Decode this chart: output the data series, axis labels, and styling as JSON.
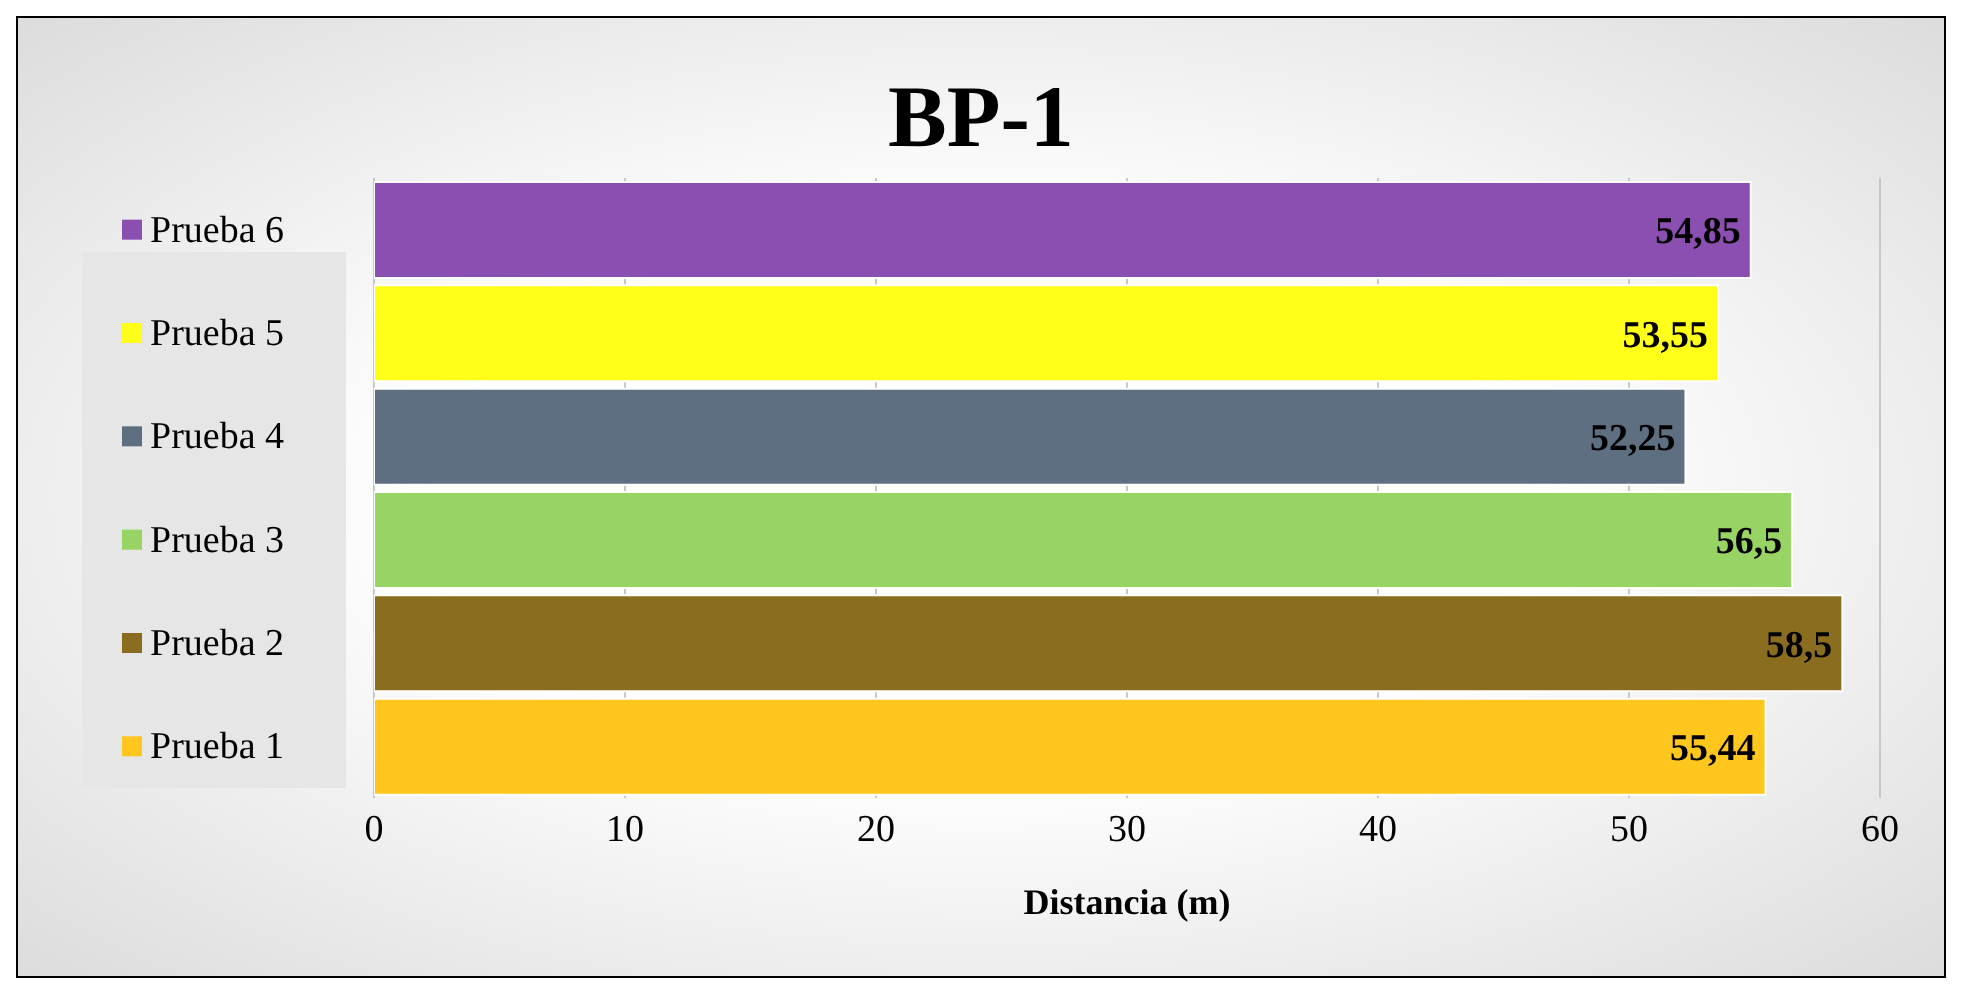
{
  "chart_data": {
    "type": "bar",
    "orientation": "horizontal",
    "title": "BP-1",
    "xlabel": "Distancia (m)",
    "categories": [
      "Prueba 6",
      "Prueba 5",
      "Prueba 4",
      "Prueba 3",
      "Prueba 2",
      "Prueba 1"
    ],
    "values": [
      54.85,
      53.55,
      52.25,
      56.5,
      58.5,
      55.44
    ],
    "colors": [
      "#8a4fb0",
      "#ffff1a",
      "#5f6f82",
      "#98d464",
      "#8b6d1f",
      "#ffc61e"
    ],
    "value_labels": [
      "54,85",
      "53,55",
      "52,25",
      "56,5",
      "58,5",
      "55,44"
    ],
    "xlim": [
      0,
      60
    ],
    "xticks": [
      0,
      10,
      20,
      30,
      40,
      50,
      60
    ],
    "grid": "x"
  }
}
